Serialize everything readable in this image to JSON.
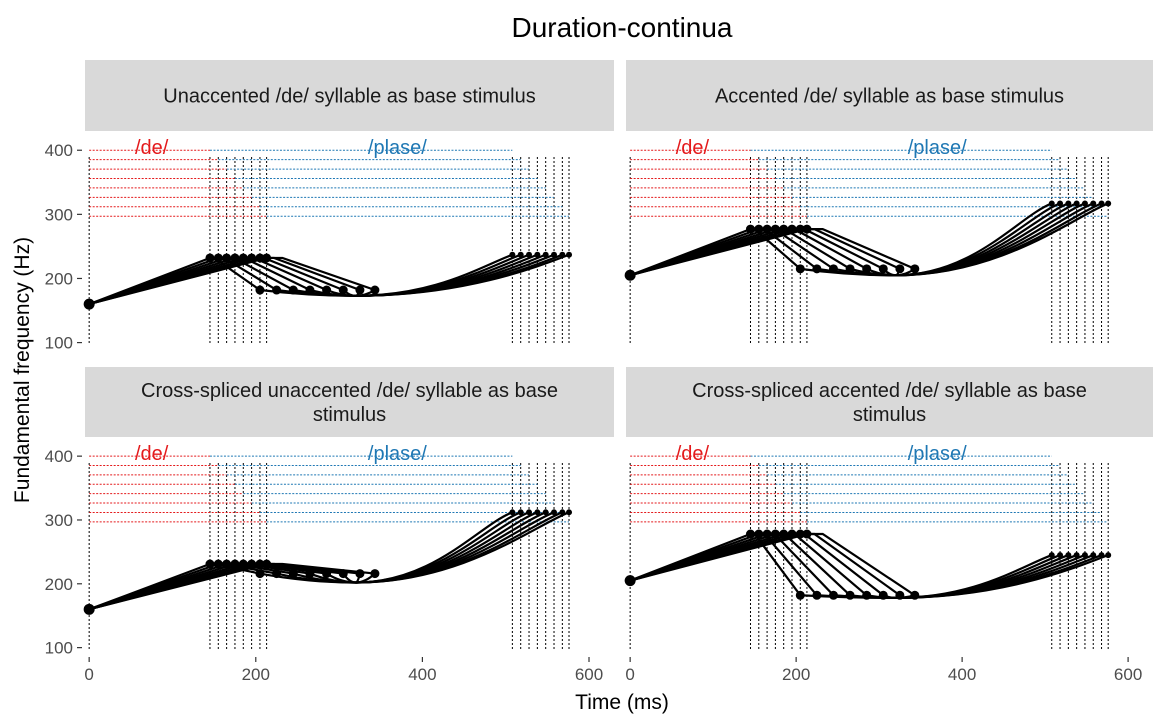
{
  "title": "Duration-continua",
  "colors": {
    "de": "#e41a1c",
    "plase": "#1f78b4",
    "contour": "#000000",
    "strip": "#d9d9d9"
  },
  "chart_data": {
    "type": "line",
    "title": "Duration-continua",
    "xlabel": "Time (ms)",
    "ylabel": "Fundamental frequency (Hz)",
    "xlim": [
      -5,
      630
    ],
    "ylim": [
      90,
      430
    ],
    "x_ticks": [
      0,
      200,
      400,
      600
    ],
    "y_ticks": [
      100,
      200,
      300,
      400
    ],
    "segment_labels": {
      "de": "/de/",
      "plase": "/plase/"
    },
    "de_boundaries_ms": [
      145,
      155,
      165,
      175,
      185,
      195,
      205,
      213
    ],
    "word_end_boundaries_ms": [
      508,
      518,
      528,
      538,
      548,
      558,
      568,
      576
    ],
    "panels": [
      {
        "title": "Unaccented /de/ syllable as base stimulus",
        "start": [
          0,
          160
        ],
        "peak_y": 232,
        "fall_y": 182,
        "valley": [
          320,
          173
        ],
        "end_y": 237
      },
      {
        "title": "Accented /de/ syllable as base stimulus",
        "start": [
          0,
          205
        ],
        "peak_y": 277,
        "fall_y": 215,
        "valley": [
          320,
          205
        ],
        "end_y": 317
      },
      {
        "title": "Cross-spliced unaccented /de/ syllable as base stimulus",
        "start": [
          0,
          160
        ],
        "peak_y": 231,
        "fall_y": 216,
        "valley": [
          320,
          202
        ],
        "end_y": 312
      },
      {
        "title": "Cross-spliced accented /de/ syllable as base stimulus",
        "start": [
          0,
          205
        ],
        "peak_y": 278,
        "fall_y": 182,
        "valley": [
          320,
          178
        ],
        "end_y": 245
      }
    ]
  }
}
